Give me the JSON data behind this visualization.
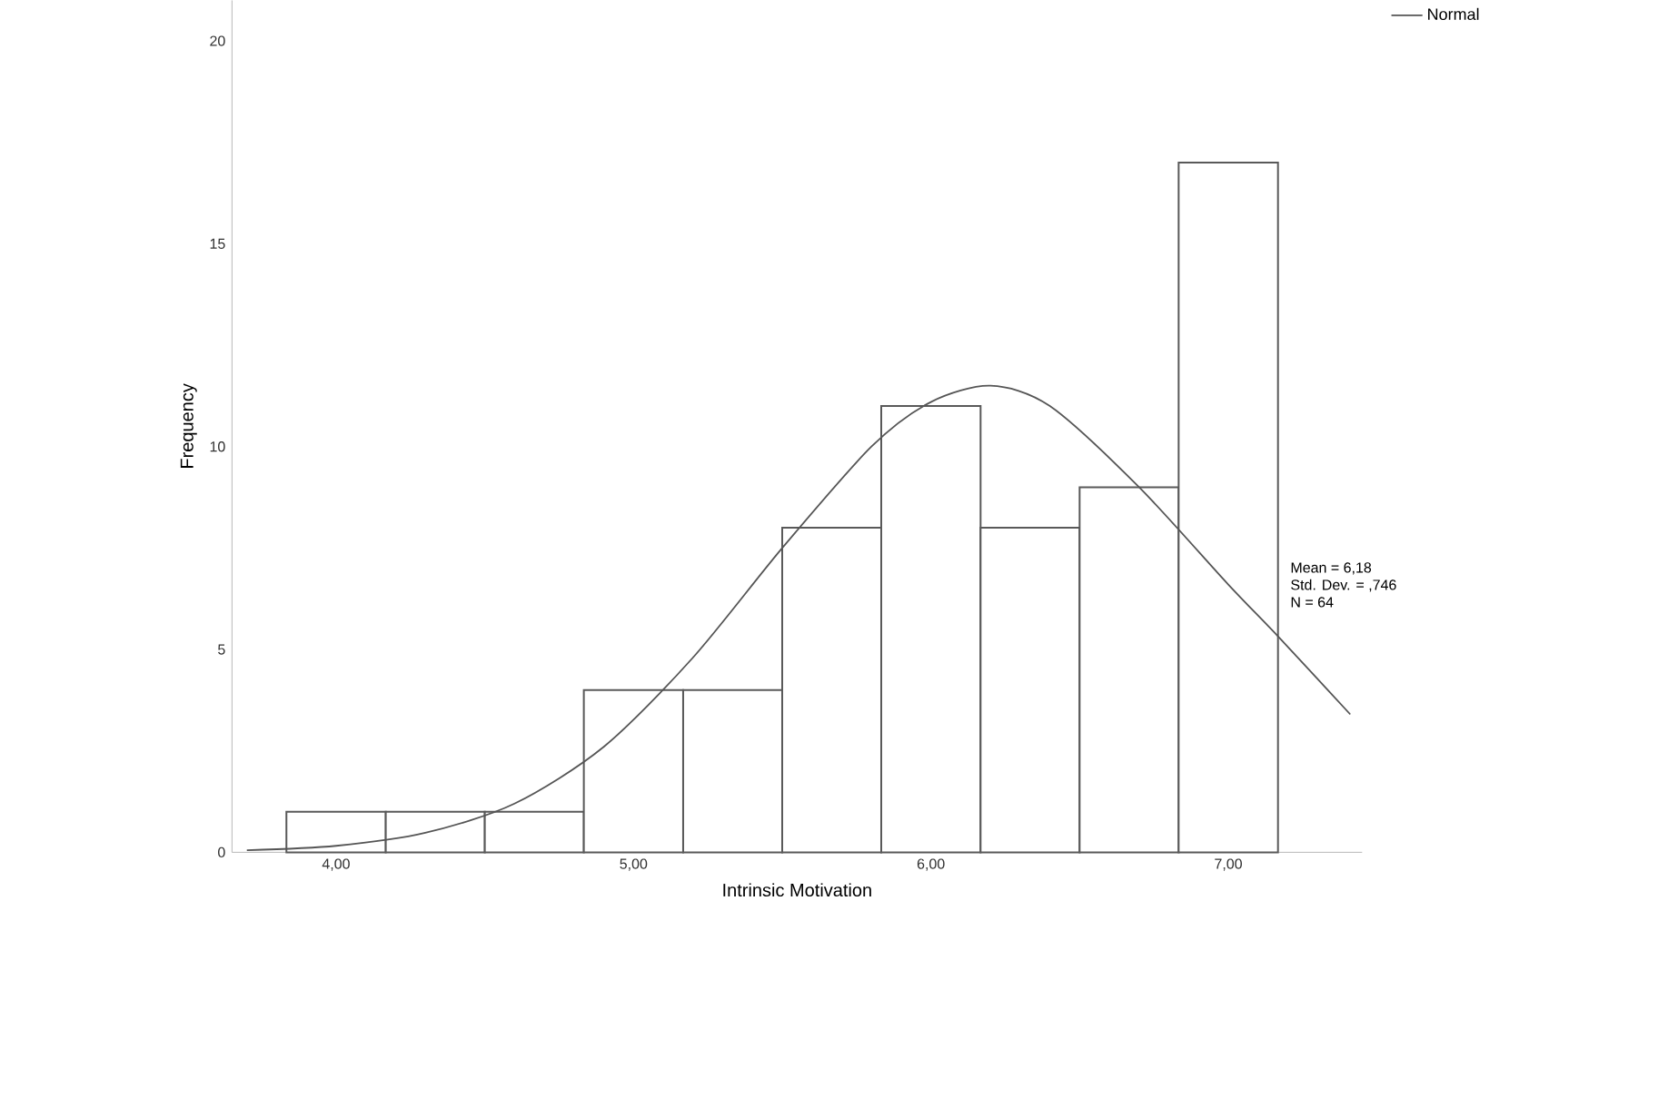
{
  "chart_data": {
    "type": "histogram",
    "xlabel": "Intrinsic Motivation",
    "ylabel": "Frequency",
    "bins": [
      3.833,
      4.167,
      4.5,
      4.833,
      5.167,
      5.5,
      5.833,
      6.167,
      6.5,
      6.833,
      7.167
    ],
    "series": [
      {
        "color": "#ffffff",
        "values": [
          1,
          1,
          1,
          4,
          4,
          8,
          11,
          8,
          9,
          17
        ]
      },
      {
        "name": "Normal",
        "type": "line",
        "color": "#555555",
        "x": [
          3.7,
          4.0,
          4.3,
          4.6,
          4.9,
          5.2,
          5.5,
          5.8,
          6.0,
          6.2,
          6.4,
          6.7,
          7.0,
          7.17,
          7.41
        ],
        "values": [
          0.05,
          0.16,
          0.48,
          1.2,
          2.6,
          4.8,
          7.5,
          10.0,
          11.1,
          11.5,
          11.0,
          9.0,
          6.6,
          5.3,
          3.4
        ]
      }
    ],
    "xlim": [
      3.65,
      7.45
    ],
    "ylim": [
      0,
      21
    ],
    "xticks": [
      {
        "value": 4,
        "label": "4,00"
      },
      {
        "value": 5,
        "label": "5,00"
      },
      {
        "value": 6,
        "label": "6,00"
      },
      {
        "value": 7,
        "label": "7,00"
      }
    ],
    "yticks": [
      0,
      5,
      10,
      15,
      20
    ],
    "grid": false,
    "legend": "top right",
    "marker": "none",
    "annotations": [
      "Mean = 6,18",
      "Std. Dev. = ,746",
      "N = 64"
    ]
  }
}
